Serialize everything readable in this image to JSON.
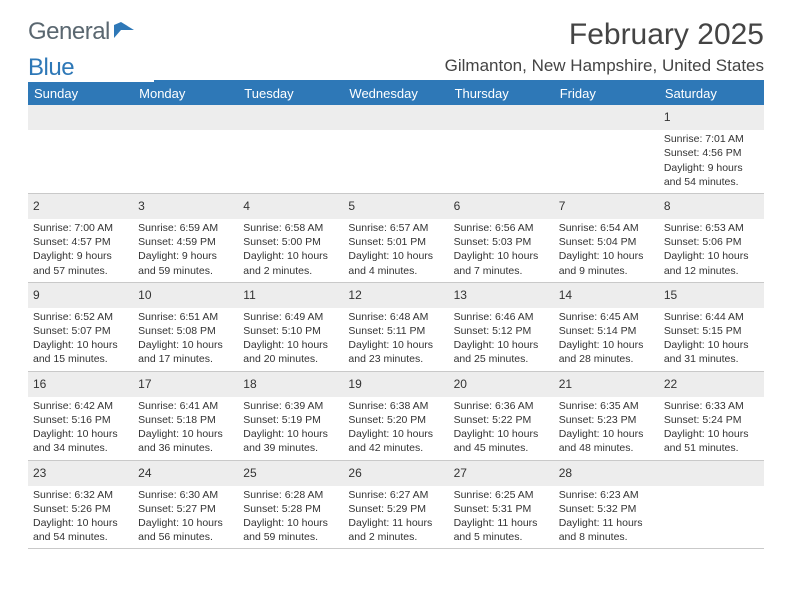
{
  "brand": {
    "text1": "General",
    "text2": "Blue"
  },
  "title": "February 2025",
  "location": "Gilmanton, New Hampshire, United States",
  "colors": {
    "accent": "#2e78b7",
    "header_text": "#ffffff",
    "daynum_bg": "#ededed"
  },
  "dow": [
    "Sunday",
    "Monday",
    "Tuesday",
    "Wednesday",
    "Thursday",
    "Friday",
    "Saturday"
  ],
  "weeks": [
    [
      {
        "n": "",
        "l": []
      },
      {
        "n": "",
        "l": []
      },
      {
        "n": "",
        "l": []
      },
      {
        "n": "",
        "l": []
      },
      {
        "n": "",
        "l": []
      },
      {
        "n": "",
        "l": []
      },
      {
        "n": "1",
        "l": [
          "Sunrise: 7:01 AM",
          "Sunset: 4:56 PM",
          "Daylight: 9 hours",
          "and 54 minutes."
        ]
      }
    ],
    [
      {
        "n": "2",
        "l": [
          "Sunrise: 7:00 AM",
          "Sunset: 4:57 PM",
          "Daylight: 9 hours",
          "and 57 minutes."
        ]
      },
      {
        "n": "3",
        "l": [
          "Sunrise: 6:59 AM",
          "Sunset: 4:59 PM",
          "Daylight: 9 hours",
          "and 59 minutes."
        ]
      },
      {
        "n": "4",
        "l": [
          "Sunrise: 6:58 AM",
          "Sunset: 5:00 PM",
          "Daylight: 10 hours",
          "and 2 minutes."
        ]
      },
      {
        "n": "5",
        "l": [
          "Sunrise: 6:57 AM",
          "Sunset: 5:01 PM",
          "Daylight: 10 hours",
          "and 4 minutes."
        ]
      },
      {
        "n": "6",
        "l": [
          "Sunrise: 6:56 AM",
          "Sunset: 5:03 PM",
          "Daylight: 10 hours",
          "and 7 minutes."
        ]
      },
      {
        "n": "7",
        "l": [
          "Sunrise: 6:54 AM",
          "Sunset: 5:04 PM",
          "Daylight: 10 hours",
          "and 9 minutes."
        ]
      },
      {
        "n": "8",
        "l": [
          "Sunrise: 6:53 AM",
          "Sunset: 5:06 PM",
          "Daylight: 10 hours",
          "and 12 minutes."
        ]
      }
    ],
    [
      {
        "n": "9",
        "l": [
          "Sunrise: 6:52 AM",
          "Sunset: 5:07 PM",
          "Daylight: 10 hours",
          "and 15 minutes."
        ]
      },
      {
        "n": "10",
        "l": [
          "Sunrise: 6:51 AM",
          "Sunset: 5:08 PM",
          "Daylight: 10 hours",
          "and 17 minutes."
        ]
      },
      {
        "n": "11",
        "l": [
          "Sunrise: 6:49 AM",
          "Sunset: 5:10 PM",
          "Daylight: 10 hours",
          "and 20 minutes."
        ]
      },
      {
        "n": "12",
        "l": [
          "Sunrise: 6:48 AM",
          "Sunset: 5:11 PM",
          "Daylight: 10 hours",
          "and 23 minutes."
        ]
      },
      {
        "n": "13",
        "l": [
          "Sunrise: 6:46 AM",
          "Sunset: 5:12 PM",
          "Daylight: 10 hours",
          "and 25 minutes."
        ]
      },
      {
        "n": "14",
        "l": [
          "Sunrise: 6:45 AM",
          "Sunset: 5:14 PM",
          "Daylight: 10 hours",
          "and 28 minutes."
        ]
      },
      {
        "n": "15",
        "l": [
          "Sunrise: 6:44 AM",
          "Sunset: 5:15 PM",
          "Daylight: 10 hours",
          "and 31 minutes."
        ]
      }
    ],
    [
      {
        "n": "16",
        "l": [
          "Sunrise: 6:42 AM",
          "Sunset: 5:16 PM",
          "Daylight: 10 hours",
          "and 34 minutes."
        ]
      },
      {
        "n": "17",
        "l": [
          "Sunrise: 6:41 AM",
          "Sunset: 5:18 PM",
          "Daylight: 10 hours",
          "and 36 minutes."
        ]
      },
      {
        "n": "18",
        "l": [
          "Sunrise: 6:39 AM",
          "Sunset: 5:19 PM",
          "Daylight: 10 hours",
          "and 39 minutes."
        ]
      },
      {
        "n": "19",
        "l": [
          "Sunrise: 6:38 AM",
          "Sunset: 5:20 PM",
          "Daylight: 10 hours",
          "and 42 minutes."
        ]
      },
      {
        "n": "20",
        "l": [
          "Sunrise: 6:36 AM",
          "Sunset: 5:22 PM",
          "Daylight: 10 hours",
          "and 45 minutes."
        ]
      },
      {
        "n": "21",
        "l": [
          "Sunrise: 6:35 AM",
          "Sunset: 5:23 PM",
          "Daylight: 10 hours",
          "and 48 minutes."
        ]
      },
      {
        "n": "22",
        "l": [
          "Sunrise: 6:33 AM",
          "Sunset: 5:24 PM",
          "Daylight: 10 hours",
          "and 51 minutes."
        ]
      }
    ],
    [
      {
        "n": "23",
        "l": [
          "Sunrise: 6:32 AM",
          "Sunset: 5:26 PM",
          "Daylight: 10 hours",
          "and 54 minutes."
        ]
      },
      {
        "n": "24",
        "l": [
          "Sunrise: 6:30 AM",
          "Sunset: 5:27 PM",
          "Daylight: 10 hours",
          "and 56 minutes."
        ]
      },
      {
        "n": "25",
        "l": [
          "Sunrise: 6:28 AM",
          "Sunset: 5:28 PM",
          "Daylight: 10 hours",
          "and 59 minutes."
        ]
      },
      {
        "n": "26",
        "l": [
          "Sunrise: 6:27 AM",
          "Sunset: 5:29 PM",
          "Daylight: 11 hours",
          "and 2 minutes."
        ]
      },
      {
        "n": "27",
        "l": [
          "Sunrise: 6:25 AM",
          "Sunset: 5:31 PM",
          "Daylight: 11 hours",
          "and 5 minutes."
        ]
      },
      {
        "n": "28",
        "l": [
          "Sunrise: 6:23 AM",
          "Sunset: 5:32 PM",
          "Daylight: 11 hours",
          "and 8 minutes."
        ]
      },
      {
        "n": "",
        "l": []
      }
    ]
  ]
}
